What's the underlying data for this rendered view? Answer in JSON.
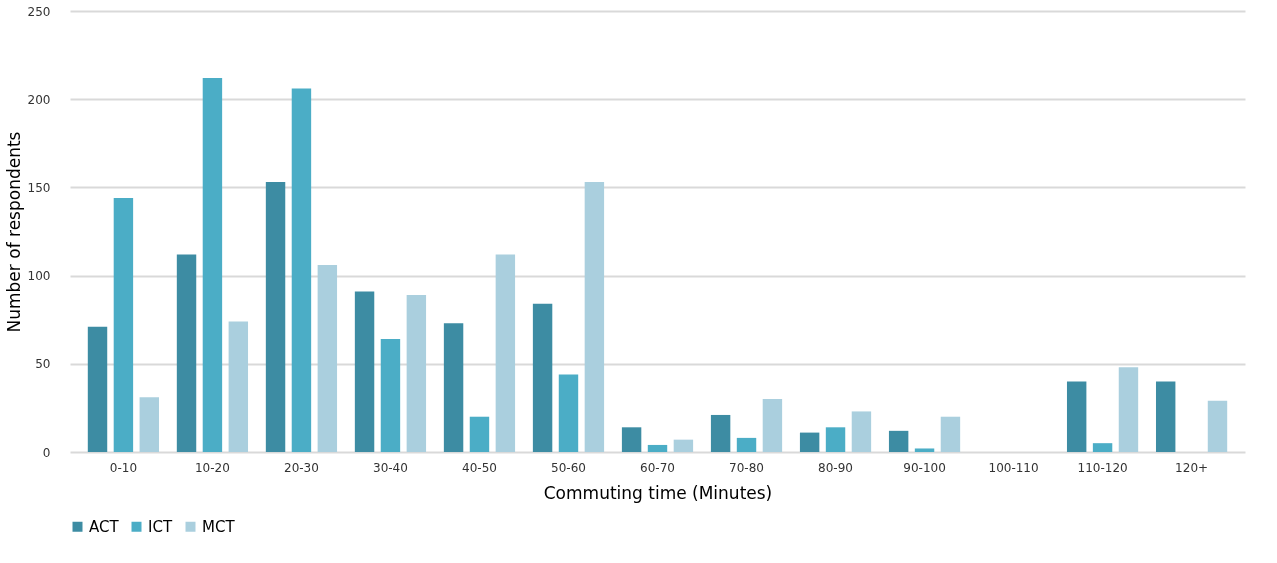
{
  "chart_data": {
    "type": "bar",
    "xlabel": "Commuting time (Minutes)",
    "ylabel": "Number of respondents",
    "categories": [
      "0-10",
      "10-20",
      "20-30",
      "30-40",
      "40-50",
      "50-60",
      "60-70",
      "70-80",
      "80-90",
      "90-100",
      "100-110",
      "110-120",
      "120+"
    ],
    "series": [
      {
        "name": "ACT",
        "color": "#3d8ca3",
        "values": [
          71,
          112,
          153,
          91,
          73,
          84,
          14,
          21,
          11,
          12,
          null,
          40,
          40
        ]
      },
      {
        "name": "ICT",
        "color": "#4badc6",
        "values": [
          144,
          212,
          206,
          64,
          20,
          44,
          4,
          8,
          14,
          2,
          null,
          5,
          null
        ]
      },
      {
        "name": "MCT",
        "color": "#aacfde",
        "values": [
          31,
          74,
          106,
          89,
          112,
          153,
          7,
          30,
          23,
          20,
          null,
          48,
          29
        ]
      }
    ],
    "ylim": [
      0,
      250
    ],
    "yticks": [
      0,
      50,
      100,
      150,
      200,
      250
    ],
    "grid": "y",
    "legend": "bottom"
  }
}
